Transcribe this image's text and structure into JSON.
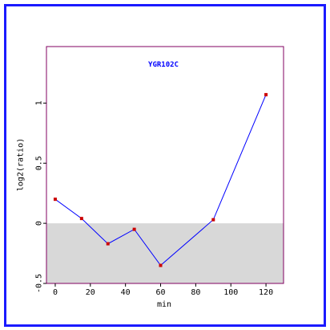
{
  "colors": {
    "frame": "#1a1aff",
    "plot_border": "#800060",
    "line": "#0000ff",
    "marker": "#cc0000",
    "negative_shade": "#d8d8d8",
    "title": "#0000ff"
  },
  "chart_data": {
    "type": "line",
    "title": "YGR102C",
    "xlabel": "min",
    "ylabel": "log2(ratio)",
    "xlim": [
      -5,
      130
    ],
    "ylim": [
      -0.5,
      1.47
    ],
    "xticks": [
      0,
      20,
      40,
      60,
      80,
      100,
      120
    ],
    "yticks": [
      -0.5,
      0,
      0.5,
      1
    ],
    "xtick_labels": [
      "0",
      "20",
      "40",
      "60",
      "80",
      "100",
      "120"
    ],
    "ytick_labels": [
      "-0.5",
      "0",
      "0.5",
      "1"
    ],
    "shade_below_zero": true,
    "grid": false,
    "series": [
      {
        "x": [
          0,
          15,
          30,
          45,
          60,
          90,
          120
        ],
        "y": [
          0.2,
          0.04,
          -0.17,
          -0.05,
          -0.35,
          0.03,
          1.07
        ]
      }
    ]
  }
}
